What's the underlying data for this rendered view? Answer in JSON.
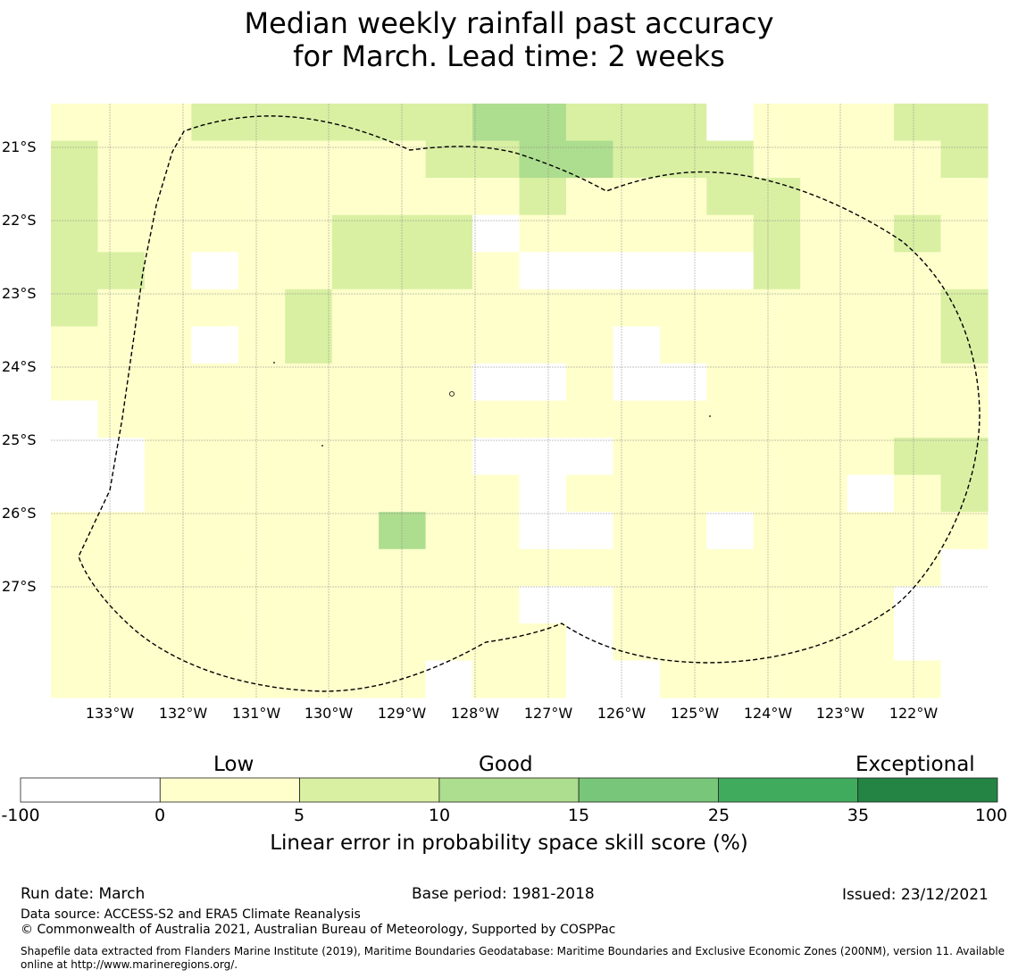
{
  "title": {
    "line1": "Median weekly rainfall past accuracy",
    "line2": "for March. Lead time: 2 weeks"
  },
  "map": {
    "lat_labels": [
      "21°S",
      "22°S",
      "23°S",
      "24°S",
      "25°S",
      "26°S",
      "27°S"
    ],
    "lon_labels": [
      "133°W",
      "132°W",
      "131°W",
      "130°W",
      "129°W",
      "128°W",
      "127°W",
      "126°W",
      "125°W",
      "124°W",
      "123°W",
      "122°W"
    ],
    "legend_codes": {
      "W": "below 0",
      "Y": "0 to 5",
      "L": "5 to 10",
      "G": "10 to 15"
    },
    "grid_rows": [
      "YYYLLLLLLGGLLLWYYYLL",
      "LYYYYYYYLLGGLLLYYYYL",
      "LYYYYYYYYYLYYYLLYYYY",
      "LYYYYYLLLWYYYYYLYYLY",
      "LLYWYYLLLYWWWWWLYYYY",
      "LYYYYLYYYYYYYYYYYYYL",
      "YYYWYLYYYYYYWYYYYYYL",
      "YYYYYYYYYWWYWWYYYYYY",
      "WYYYYYYYYYYYYYYYYYYY",
      "WWYYYYYYYWWWYYYYYYLL",
      "WWYYYYYYYYWYYYYYYWYL",
      "YYYYYYYGYYWWYYWYYYYY",
      "YYYYYYYYYYYYYYYYYYYW",
      "YYYYYYYYYYWWYYYYYYWW",
      "YYYYYYYYYYYWYYYYYYWW",
      "YYYYYYYYWYYWWYYYYYYW"
    ],
    "colors": {
      "W": "#ffffff",
      "Y": "#ffffcc",
      "L": "#d9f0a3",
      "G": "#addd8e"
    }
  },
  "colorbar": {
    "band_labels": [
      "Low",
      "Good",
      "Exceptional"
    ],
    "ticks": [
      "-100",
      "0",
      "5",
      "10",
      "15",
      "25",
      "35",
      "100"
    ],
    "colors": [
      "#ffffff",
      "#ffffcc",
      "#d9f0a3",
      "#addd8e",
      "#78c679",
      "#41ab5d",
      "#238443"
    ],
    "title": "Linear error in probability space skill score (%)"
  },
  "footer": {
    "run_date": "Run date: March",
    "base_period": "Base period: 1981-2018",
    "issued": "Issued: 23/12/2021",
    "data_source": "Data source: ACCESS-S2 and ERA5 Climate Reanalysis",
    "copyright": "© Commonwealth of Australia 2021, Australian Bureau of Meteorology, Supported by COSPPac",
    "shapefile_line1": "Shapefile data extracted from Flanders Marine Institute (2019), Maritime Boundaries Geodatabase: Maritime Boundaries and Exclusive Economic Zones (200NM), version 11. Available",
    "shapefile_line2": "online at http://www.marineregions.org/."
  }
}
